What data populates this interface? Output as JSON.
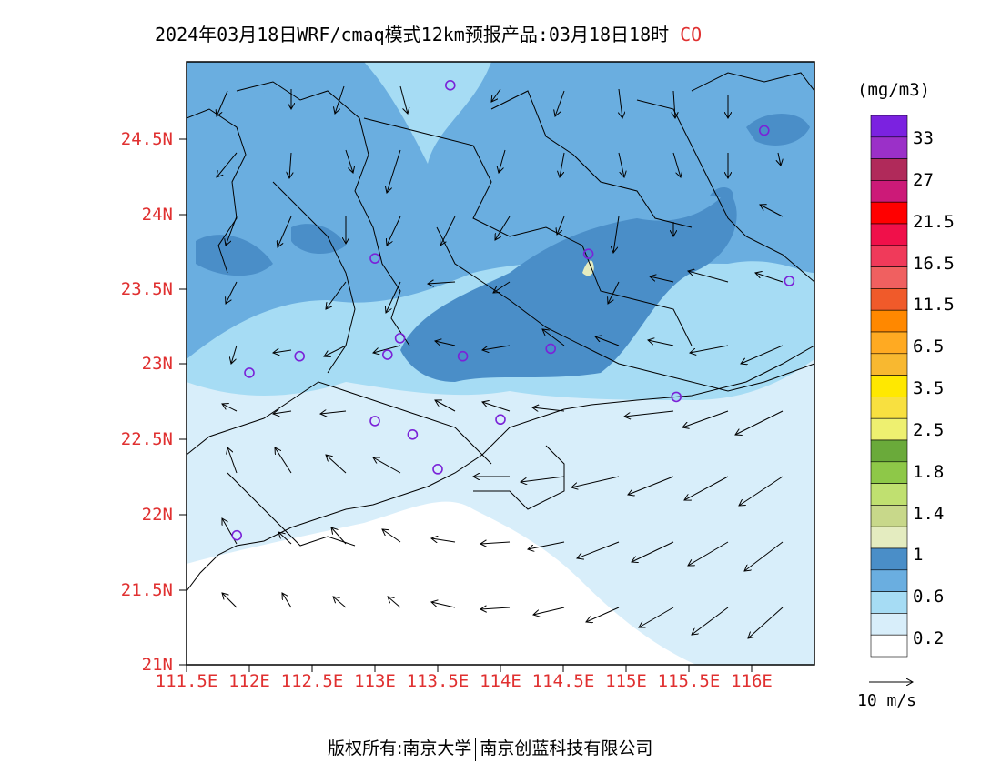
{
  "title": {
    "text": "2024年03月18日WRF/cmaq模式12km预报产品:03月18日18时",
    "species": "CO"
  },
  "lat_labels": [
    "24.5N",
    "24N",
    "23.5N",
    "23N",
    "22.5N",
    "22N",
    "21.5N",
    "21N"
  ],
  "lon_labels": [
    "111.5E",
    "112E",
    "112.5E",
    "113E",
    "113.5E",
    "114E",
    "114.5E",
    "115E",
    "115.5E",
    "116E"
  ],
  "legend": {
    "unit": "(mg/m3)",
    "labels": [
      "33",
      "27",
      "21.5",
      "16.5",
      "11.5",
      "6.5",
      "3.5",
      "2.5",
      "1.8",
      "1.4",
      "1",
      "0.6",
      "0.2"
    ],
    "colors": [
      "#7b22e0",
      "#9b30c8",
      "#b02a5a",
      "#cc1a78",
      "#ff0000",
      "#f0104a",
      "#f03a5a",
      "#f06060",
      "#f05a2a",
      "#ff8800",
      "#ffaa22",
      "#f8b830",
      "#ffe800",
      "#f8e040",
      "#eef070",
      "#6aaa3a",
      "#8ec848",
      "#c0e070",
      "#c8d88a",
      "#e4ecc0",
      "#4a8ec8",
      "#6aaee0",
      "#a6dcf4",
      "#d8eefa",
      "#ffffff"
    ]
  },
  "wind_scale": {
    "label": "10 m/s"
  },
  "footer": {
    "left": "版权所有:南京大学",
    "right": "南京创蓝科技有限公司"
  },
  "stations": [
    {
      "lon": 113.6,
      "lat": 24.85
    },
    {
      "lon": 116.1,
      "lat": 24.55
    },
    {
      "lon": 113.0,
      "lat": 23.7
    },
    {
      "lon": 114.7,
      "lat": 23.73
    },
    {
      "lon": 116.3,
      "lat": 23.55
    },
    {
      "lon": 113.2,
      "lat": 23.17
    },
    {
      "lon": 113.1,
      "lat": 23.06
    },
    {
      "lon": 113.7,
      "lat": 23.05
    },
    {
      "lon": 114.4,
      "lat": 23.1
    },
    {
      "lon": 112.4,
      "lat": 23.05
    },
    {
      "lon": 112.0,
      "lat": 22.94
    },
    {
      "lon": 115.4,
      "lat": 22.78
    },
    {
      "lon": 113.0,
      "lat": 22.62
    },
    {
      "lon": 114.0,
      "lat": 22.63
    },
    {
      "lon": 113.3,
      "lat": 22.53
    },
    {
      "lon": 113.5,
      "lat": 22.3
    },
    {
      "lon": 111.9,
      "lat": 21.86
    }
  ]
}
